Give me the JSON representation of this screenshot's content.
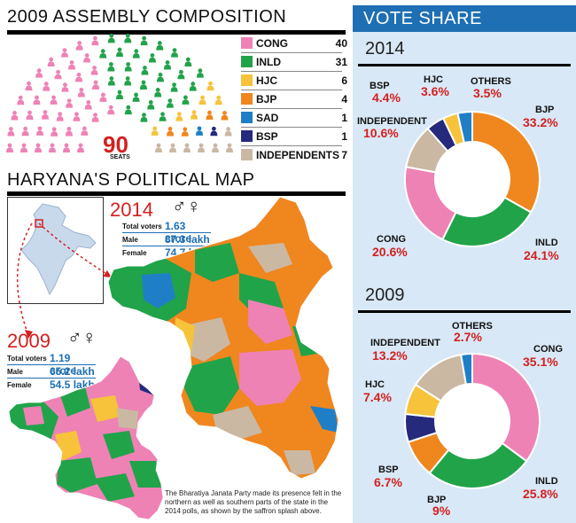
{
  "assembly": {
    "title": "2009 ASSEMBLY COMPOSITION",
    "total_seats": "90",
    "seats_label": "SEATS",
    "legend": [
      {
        "name": "CONG",
        "value": "40",
        "color": "#ee82b5"
      },
      {
        "name": "INLD",
        "value": "31",
        "color": "#21a34a"
      },
      {
        "name": "HJC",
        "value": "6",
        "color": "#f6c33b"
      },
      {
        "name": "BJP",
        "value": "4",
        "color": "#f0861e"
      },
      {
        "name": "SAD",
        "value": "1",
        "color": "#1f7fc6"
      },
      {
        "name": "BSP",
        "value": "1",
        "color": "#252a7d"
      },
      {
        "name": "INDEPENDENTS",
        "value": "7",
        "color": "#cbb8a3"
      }
    ]
  },
  "political_map": {
    "title": "HARYANA'S POLITICAL MAP",
    "y2014": {
      "year": "2014",
      "total_voters_label": "Total voters",
      "total_voters": "1.63 crore",
      "male_label": "Male",
      "male": "87.3 lakh",
      "female_label": "Female",
      "female": "74.7 lakh"
    },
    "y2009": {
      "year": "2009",
      "total_voters_label": "Total voters",
      "total_voters": "1.19 crore",
      "male_label": "Male",
      "male": "65.2 lakh",
      "female_label": "Female",
      "female": "54.5 lakh"
    },
    "caption": "The Bharatiya Janata Party made its presence felt in the northern as well as southern parts of the state in the 2014 polls, as shown by the saffron splash above.",
    "region_colors": {
      "cong": "#ee82b5",
      "inld": "#21a34a",
      "hjc": "#f6c33b",
      "bjp": "#f0861e",
      "sad": "#1f7fc6",
      "bsp": "#252a7d",
      "ind": "#cbb8a3"
    }
  },
  "vote_share": {
    "title": "VOTE SHARE"
  },
  "chart_data": [
    {
      "type": "pie",
      "title": "2014",
      "categories": [
        "BJP",
        "INLD",
        "CONG",
        "INDEPENDENT",
        "BSP",
        "HJC",
        "OTHERS"
      ],
      "values": [
        33.2,
        24.1,
        20.6,
        10.6,
        4.4,
        3.6,
        3.5
      ],
      "labels": [
        "33.2%",
        "24.1%",
        "20.6%",
        "10.6%",
        "4.4%",
        "3.6%",
        "3.5%"
      ],
      "colors": [
        "#f0861e",
        "#21a34a",
        "#ee82b5",
        "#cbb8a3",
        "#252a7d",
        "#f6c33b",
        "#1f7fc6"
      ],
      "donut": true
    },
    {
      "type": "pie",
      "title": "2009",
      "categories": [
        "CONG",
        "INLD",
        "BJP",
        "BSP",
        "HJC",
        "INDEPENDENT",
        "OTHERS"
      ],
      "values": [
        35.1,
        25.8,
        9,
        6.7,
        7.4,
        13.2,
        2.7
      ],
      "labels": [
        "35.1%",
        "25.8%",
        "9%",
        "6.7%",
        "7.4%",
        "13.2%",
        "2.7%"
      ],
      "colors": [
        "#ee82b5",
        "#21a34a",
        "#f0861e",
        "#252a7d",
        "#f6c33b",
        "#cbb8a3",
        "#1f7fc6"
      ],
      "donut": true
    }
  ]
}
